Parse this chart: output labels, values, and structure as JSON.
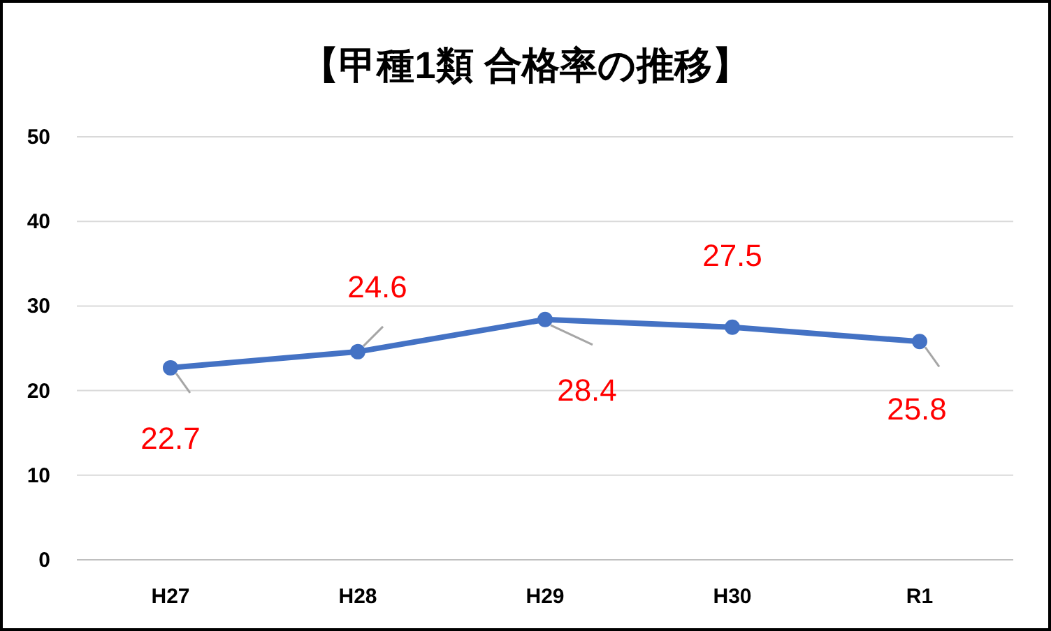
{
  "chart_data": {
    "type": "line",
    "title": "【甲種1類 合格率の推移】",
    "categories": [
      "H27",
      "H28",
      "H29",
      "H30",
      "R1"
    ],
    "series": [
      {
        "color": "#4472c4",
        "values": [
          22.7,
          24.6,
          28.4,
          27.5,
          25.8
        ]
      }
    ],
    "ylim": [
      0,
      50
    ],
    "yticks": [
      0,
      10,
      20,
      30,
      40,
      50
    ],
    "grid": "y",
    "marker": "circle",
    "line_style": "solid",
    "data_labels": true
  }
}
